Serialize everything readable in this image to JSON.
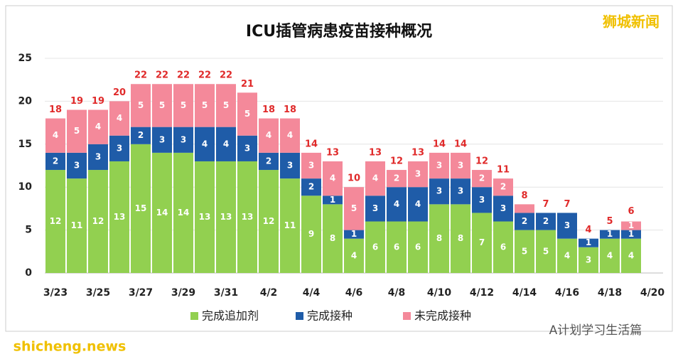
{
  "chart_data": {
    "type": "stacked_bar",
    "title": "ICU插管病患疫苗接种概况",
    "watermark": "狮城新闻",
    "footer_right": "A计划学习生活篇",
    "footer_left": "shicheng.news",
    "categories": [
      "3/23",
      null,
      "3/25",
      null,
      "3/27",
      null,
      "3/29",
      null,
      "3/31",
      null,
      "4/2",
      null,
      "4/4",
      null,
      "4/6",
      null,
      "4/8",
      null,
      "4/10",
      null,
      "4/12",
      null,
      "4/14",
      null,
      "4/16",
      null,
      "4/18",
      null,
      "4/20"
    ],
    "series": [
      {
        "name": "完成追加剂",
        "color": "#92d050",
        "values": [
          12,
          11,
          12,
          13,
          15,
          14,
          14,
          13,
          13,
          13,
          12,
          11,
          9,
          8,
          4,
          6,
          6,
          6,
          8,
          8,
          7,
          6,
          5,
          5,
          4,
          3,
          4,
          4,
          null
        ]
      },
      {
        "name": "完成接种",
        "color": "#1f5ca8",
        "values": [
          2,
          3,
          3,
          3,
          2,
          3,
          3,
          4,
          4,
          3,
          2,
          3,
          2,
          1,
          1,
          3,
          4,
          4,
          3,
          3,
          3,
          3,
          2,
          2,
          3,
          1,
          1,
          1,
          null
        ]
      },
      {
        "name": "未完成接种",
        "color": "#f4899a",
        "values": [
          4,
          5,
          4,
          4,
          5,
          5,
          5,
          5,
          5,
          5,
          4,
          4,
          3,
          4,
          5,
          4,
          2,
          3,
          3,
          3,
          2,
          2,
          1,
          0,
          0,
          0,
          0,
          1,
          null
        ],
        "value_labels": [
          "4",
          "5",
          "4",
          "4",
          "5",
          "5",
          "5",
          "5",
          "5",
          "5",
          "4",
          "4",
          "3",
          "4",
          "5",
          "4",
          "2",
          "3",
          "3",
          "3",
          "2",
          "2",
          null,
          null,
          null,
          null,
          null,
          "1",
          null
        ]
      }
    ],
    "totals": [
      18,
      19,
      19,
      20,
      22,
      22,
      22,
      22,
      22,
      21,
      18,
      18,
      14,
      13,
      10,
      13,
      12,
      13,
      14,
      14,
      12,
      11,
      8,
      7,
      7,
      4,
      5,
      6,
      null
    ],
    "ylim": [
      0,
      25
    ],
    "yticks": [
      0,
      5,
      10,
      15,
      20,
      25
    ],
    "grid": true,
    "legend": "bottom"
  }
}
